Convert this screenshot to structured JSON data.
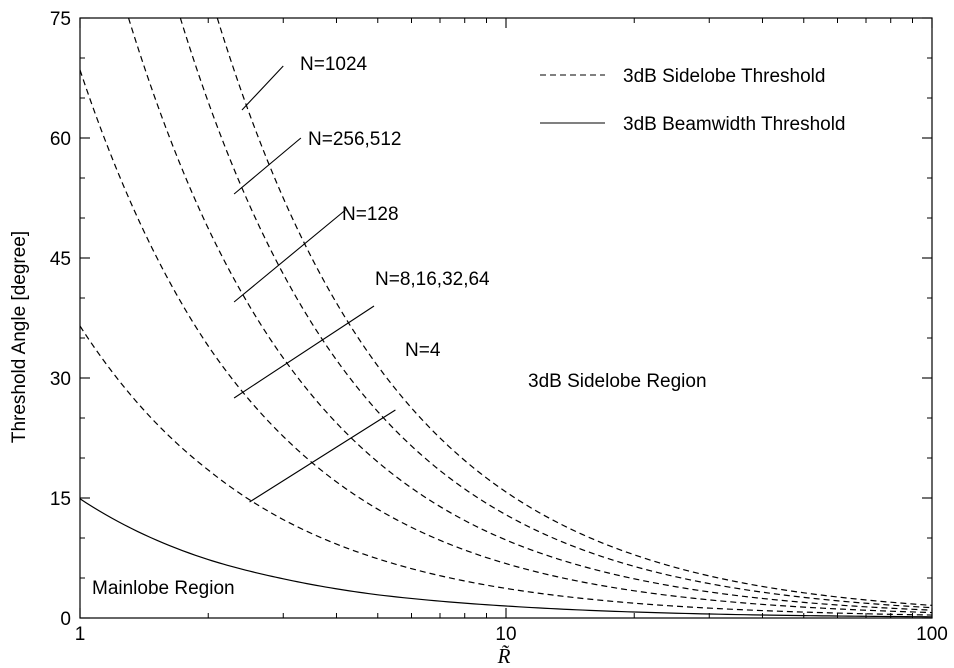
{
  "chart_data": {
    "type": "line",
    "title": "",
    "xlabel": "R̃",
    "ylabel": "Threshold Angle [degree]",
    "xscale": "log",
    "xlim": [
      1,
      100
    ],
    "ylim": [
      0,
      75
    ],
    "xticks": [
      1,
      10,
      100
    ],
    "xtick_labels": [
      "1",
      "10",
      "100"
    ],
    "yticks": [
      0,
      15,
      30,
      45,
      60,
      75
    ],
    "ytick_labels": [
      "0",
      "15",
      "30",
      "45",
      "60",
      "75"
    ],
    "grid": false,
    "legend_position": "top-right",
    "legend": [
      {
        "label": "3dB Sidelobe Threshold",
        "style": "dashed"
      },
      {
        "label": "3dB Beamwidth Threshold",
        "style": "solid"
      }
    ],
    "series": [
      {
        "style": "solid",
        "points": [
          [
            1,
            14.9
          ],
          [
            2,
            7.3
          ],
          [
            3,
            4.9
          ],
          [
            5,
            2.9
          ],
          [
            10,
            1.5
          ],
          [
            20,
            0.75
          ],
          [
            50,
            0.3
          ],
          [
            100,
            0.15
          ]
        ]
      },
      {
        "style": "dashed",
        "points": [
          [
            1,
            36.5
          ],
          [
            1.5,
            24.5
          ],
          [
            2,
            18.5
          ],
          [
            3,
            12.3
          ],
          [
            5,
            7.4
          ],
          [
            10,
            3.7
          ],
          [
            20,
            1.85
          ],
          [
            50,
            0.74
          ],
          [
            100,
            0.37
          ]
        ]
      },
      {
        "style": "dashed",
        "points": [
          [
            1,
            68.5
          ],
          [
            1.5,
            45.5
          ],
          [
            2,
            34
          ],
          [
            3,
            22.7
          ],
          [
            5,
            13.6
          ],
          [
            10,
            6.8
          ],
          [
            20,
            3.4
          ],
          [
            50,
            1.36
          ],
          [
            100,
            0.68
          ]
        ]
      },
      {
        "style": "dashed",
        "points": [
          [
            1.3,
            75
          ],
          [
            1.5,
            65
          ],
          [
            2,
            48.7
          ],
          [
            3,
            32.5
          ],
          [
            5,
            19.5
          ],
          [
            10,
            9.75
          ],
          [
            20,
            4.9
          ],
          [
            50,
            1.95
          ],
          [
            100,
            0.98
          ]
        ]
      },
      {
        "style": "dashed",
        "points": [
          [
            1.72,
            75
          ],
          [
            2,
            64.5
          ],
          [
            3,
            43
          ],
          [
            5,
            25.8
          ],
          [
            10,
            12.9
          ],
          [
            20,
            6.45
          ],
          [
            50,
            2.58
          ],
          [
            100,
            1.29
          ]
        ]
      },
      {
        "style": "dashed",
        "points": [
          [
            2.1,
            75
          ],
          [
            2.5,
            63
          ],
          [
            3,
            52.5
          ],
          [
            5,
            31.5
          ],
          [
            10,
            15.75
          ],
          [
            20,
            7.9
          ],
          [
            50,
            3.15
          ],
          [
            100,
            1.58
          ]
        ]
      }
    ],
    "annotations": [
      {
        "text": "N=1024",
        "from": [
          2.4,
          63.5
        ],
        "to": [
          3.0,
          69
        ]
      },
      {
        "text": "N=256,512",
        "from": [
          2.3,
          53
        ],
        "to": [
          3.3,
          60
        ]
      },
      {
        "text": "N=128",
        "from": [
          2.3,
          39.5
        ],
        "to": [
          4.2,
          51
        ]
      },
      {
        "text": "N=8,16,32,64",
        "from": [
          2.3,
          27.5
        ],
        "to": [
          4.9,
          39
        ]
      },
      {
        "text": "N=4",
        "from": [
          2.5,
          14.5
        ],
        "to": [
          5.5,
          26
        ]
      }
    ],
    "region_labels": [
      "3dB Sidelobe Region",
      "Mainlobe Region"
    ]
  }
}
